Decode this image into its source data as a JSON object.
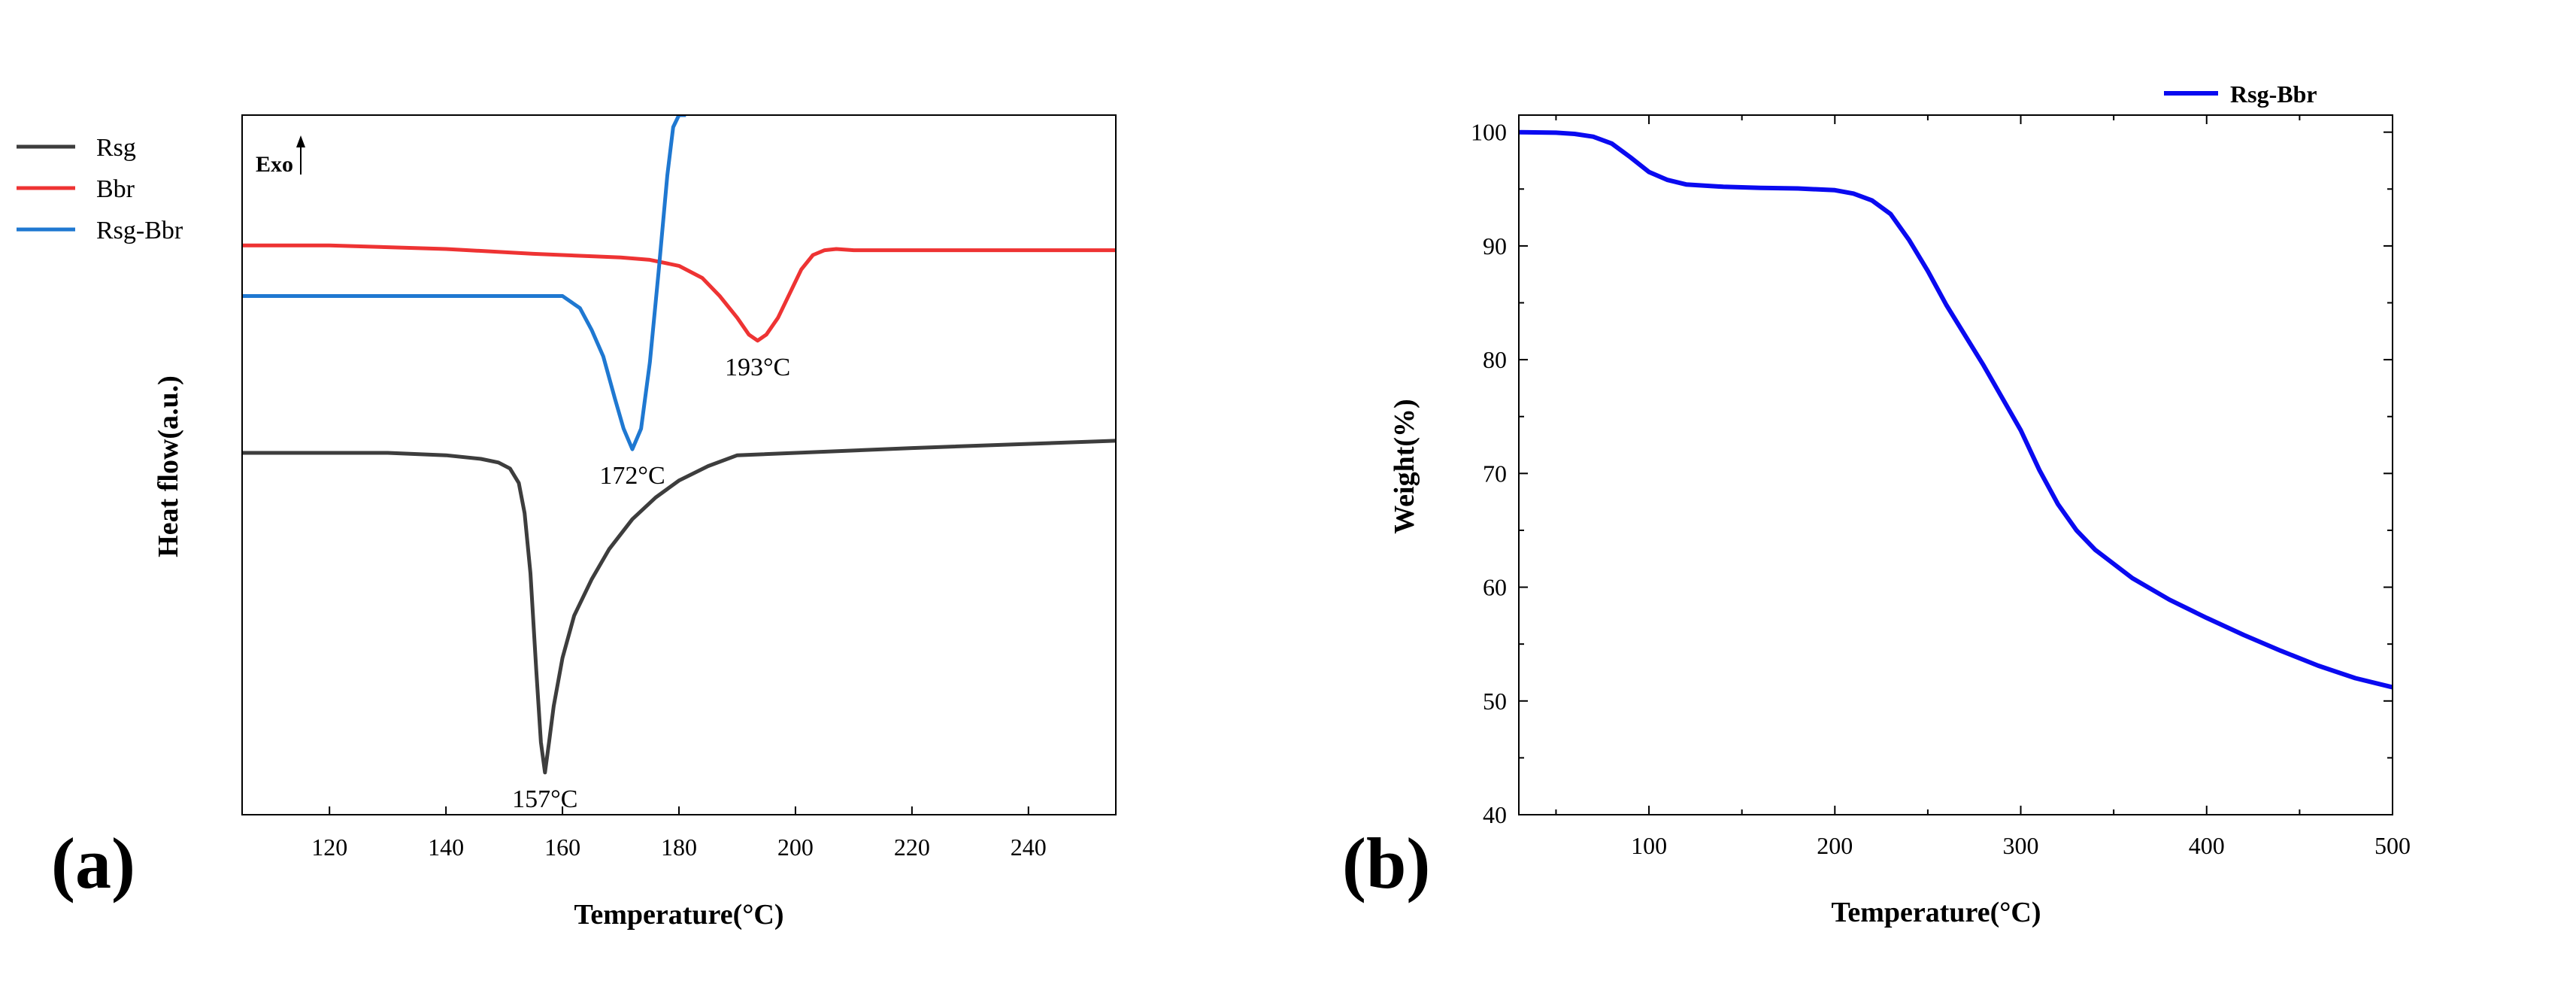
{
  "panels": {
    "a": {
      "label": "(a)"
    },
    "b": {
      "label": "(b)"
    }
  },
  "chart_data": [
    {
      "type": "line",
      "title": "",
      "xlabel": "Temperature(°C)",
      "ylabel": "Heat flow(a.u.)",
      "xlim": [
        105,
        255
      ],
      "ylim": [
        -1.0,
        4.8
      ],
      "xticks": [
        120,
        140,
        160,
        180,
        200,
        220,
        240
      ],
      "y_tick_labels": false,
      "exo_label": "Exo",
      "legend_position": "top-left",
      "series": [
        {
          "name": "Rsg",
          "color": "#3d3d3d",
          "x": [
            105,
            130,
            140,
            146,
            149,
            151,
            152.5,
            153.5,
            154.5,
            155.5,
            156.3,
            157,
            157.7,
            158.5,
            160,
            162,
            165,
            168,
            172,
            176,
            180,
            185,
            190,
            220,
            255
          ],
          "y": [
            2.0,
            2.0,
            1.98,
            1.95,
            1.92,
            1.87,
            1.75,
            1.5,
            1.0,
            0.2,
            -0.4,
            -0.65,
            -0.4,
            -0.1,
            0.3,
            0.65,
            0.95,
            1.2,
            1.45,
            1.63,
            1.77,
            1.89,
            1.98,
            2.04,
            2.1
          ]
        },
        {
          "name": "Bbr",
          "color": "#ee3333",
          "x": [
            105,
            120,
            140,
            155,
            165,
            170,
            175,
            180,
            184,
            187,
            190,
            192,
            193.5,
            195,
            197,
            199,
            201,
            203,
            205,
            207,
            210,
            230,
            255
          ],
          "y": [
            3.72,
            3.72,
            3.69,
            3.65,
            3.63,
            3.62,
            3.6,
            3.55,
            3.45,
            3.3,
            3.12,
            2.98,
            2.93,
            2.98,
            3.12,
            3.32,
            3.52,
            3.64,
            3.68,
            3.69,
            3.68,
            3.68,
            3.68
          ]
        },
        {
          "name": "Rsg-Bbr",
          "color": "#1f78d1",
          "x": [
            105,
            150,
            160,
            163,
            165,
            167,
            169,
            170.5,
            172,
            173.5,
            175,
            176.5,
            178,
            179,
            180,
            181.2
          ],
          "y": [
            3.3,
            3.3,
            3.3,
            3.2,
            3.02,
            2.8,
            2.45,
            2.2,
            2.03,
            2.2,
            2.75,
            3.5,
            4.3,
            4.7,
            4.8,
            4.8
          ]
        }
      ],
      "annotations": [
        {
          "text": "157°C",
          "x": 157,
          "y": -0.65
        },
        {
          "text": "172°C",
          "x": 172,
          "y": 2.03
        },
        {
          "text": "193°C",
          "x": 193.5,
          "y": 2.93
        }
      ]
    },
    {
      "type": "line",
      "title": "",
      "xlabel": "Temperature(°C)",
      "ylabel": "Weight(%)",
      "xlim": [
        30,
        500
      ],
      "ylim": [
        40,
        101.5
      ],
      "xticks": [
        100,
        200,
        300,
        400,
        500
      ],
      "yticks": [
        40,
        50,
        60,
        70,
        80,
        90,
        100
      ],
      "legend_position": "top-right",
      "series": [
        {
          "name": "Rsg-Bbr",
          "color": "#0a0af0",
          "x": [
            30,
            50,
            60,
            70,
            80,
            90,
            100,
            110,
            120,
            140,
            160,
            180,
            200,
            210,
            220,
            230,
            240,
            250,
            260,
            280,
            300,
            310,
            320,
            330,
            340,
            360,
            380,
            400,
            420,
            440,
            460,
            480,
            500
          ],
          "y": [
            100.0,
            99.95,
            99.85,
            99.6,
            99.0,
            97.8,
            96.5,
            95.8,
            95.4,
            95.2,
            95.1,
            95.05,
            94.9,
            94.6,
            94.0,
            92.8,
            90.5,
            87.8,
            84.8,
            79.5,
            73.8,
            70.3,
            67.3,
            65.0,
            63.3,
            60.8,
            58.9,
            57.3,
            55.8,
            54.4,
            53.1,
            52.0,
            51.2
          ]
        }
      ]
    }
  ]
}
